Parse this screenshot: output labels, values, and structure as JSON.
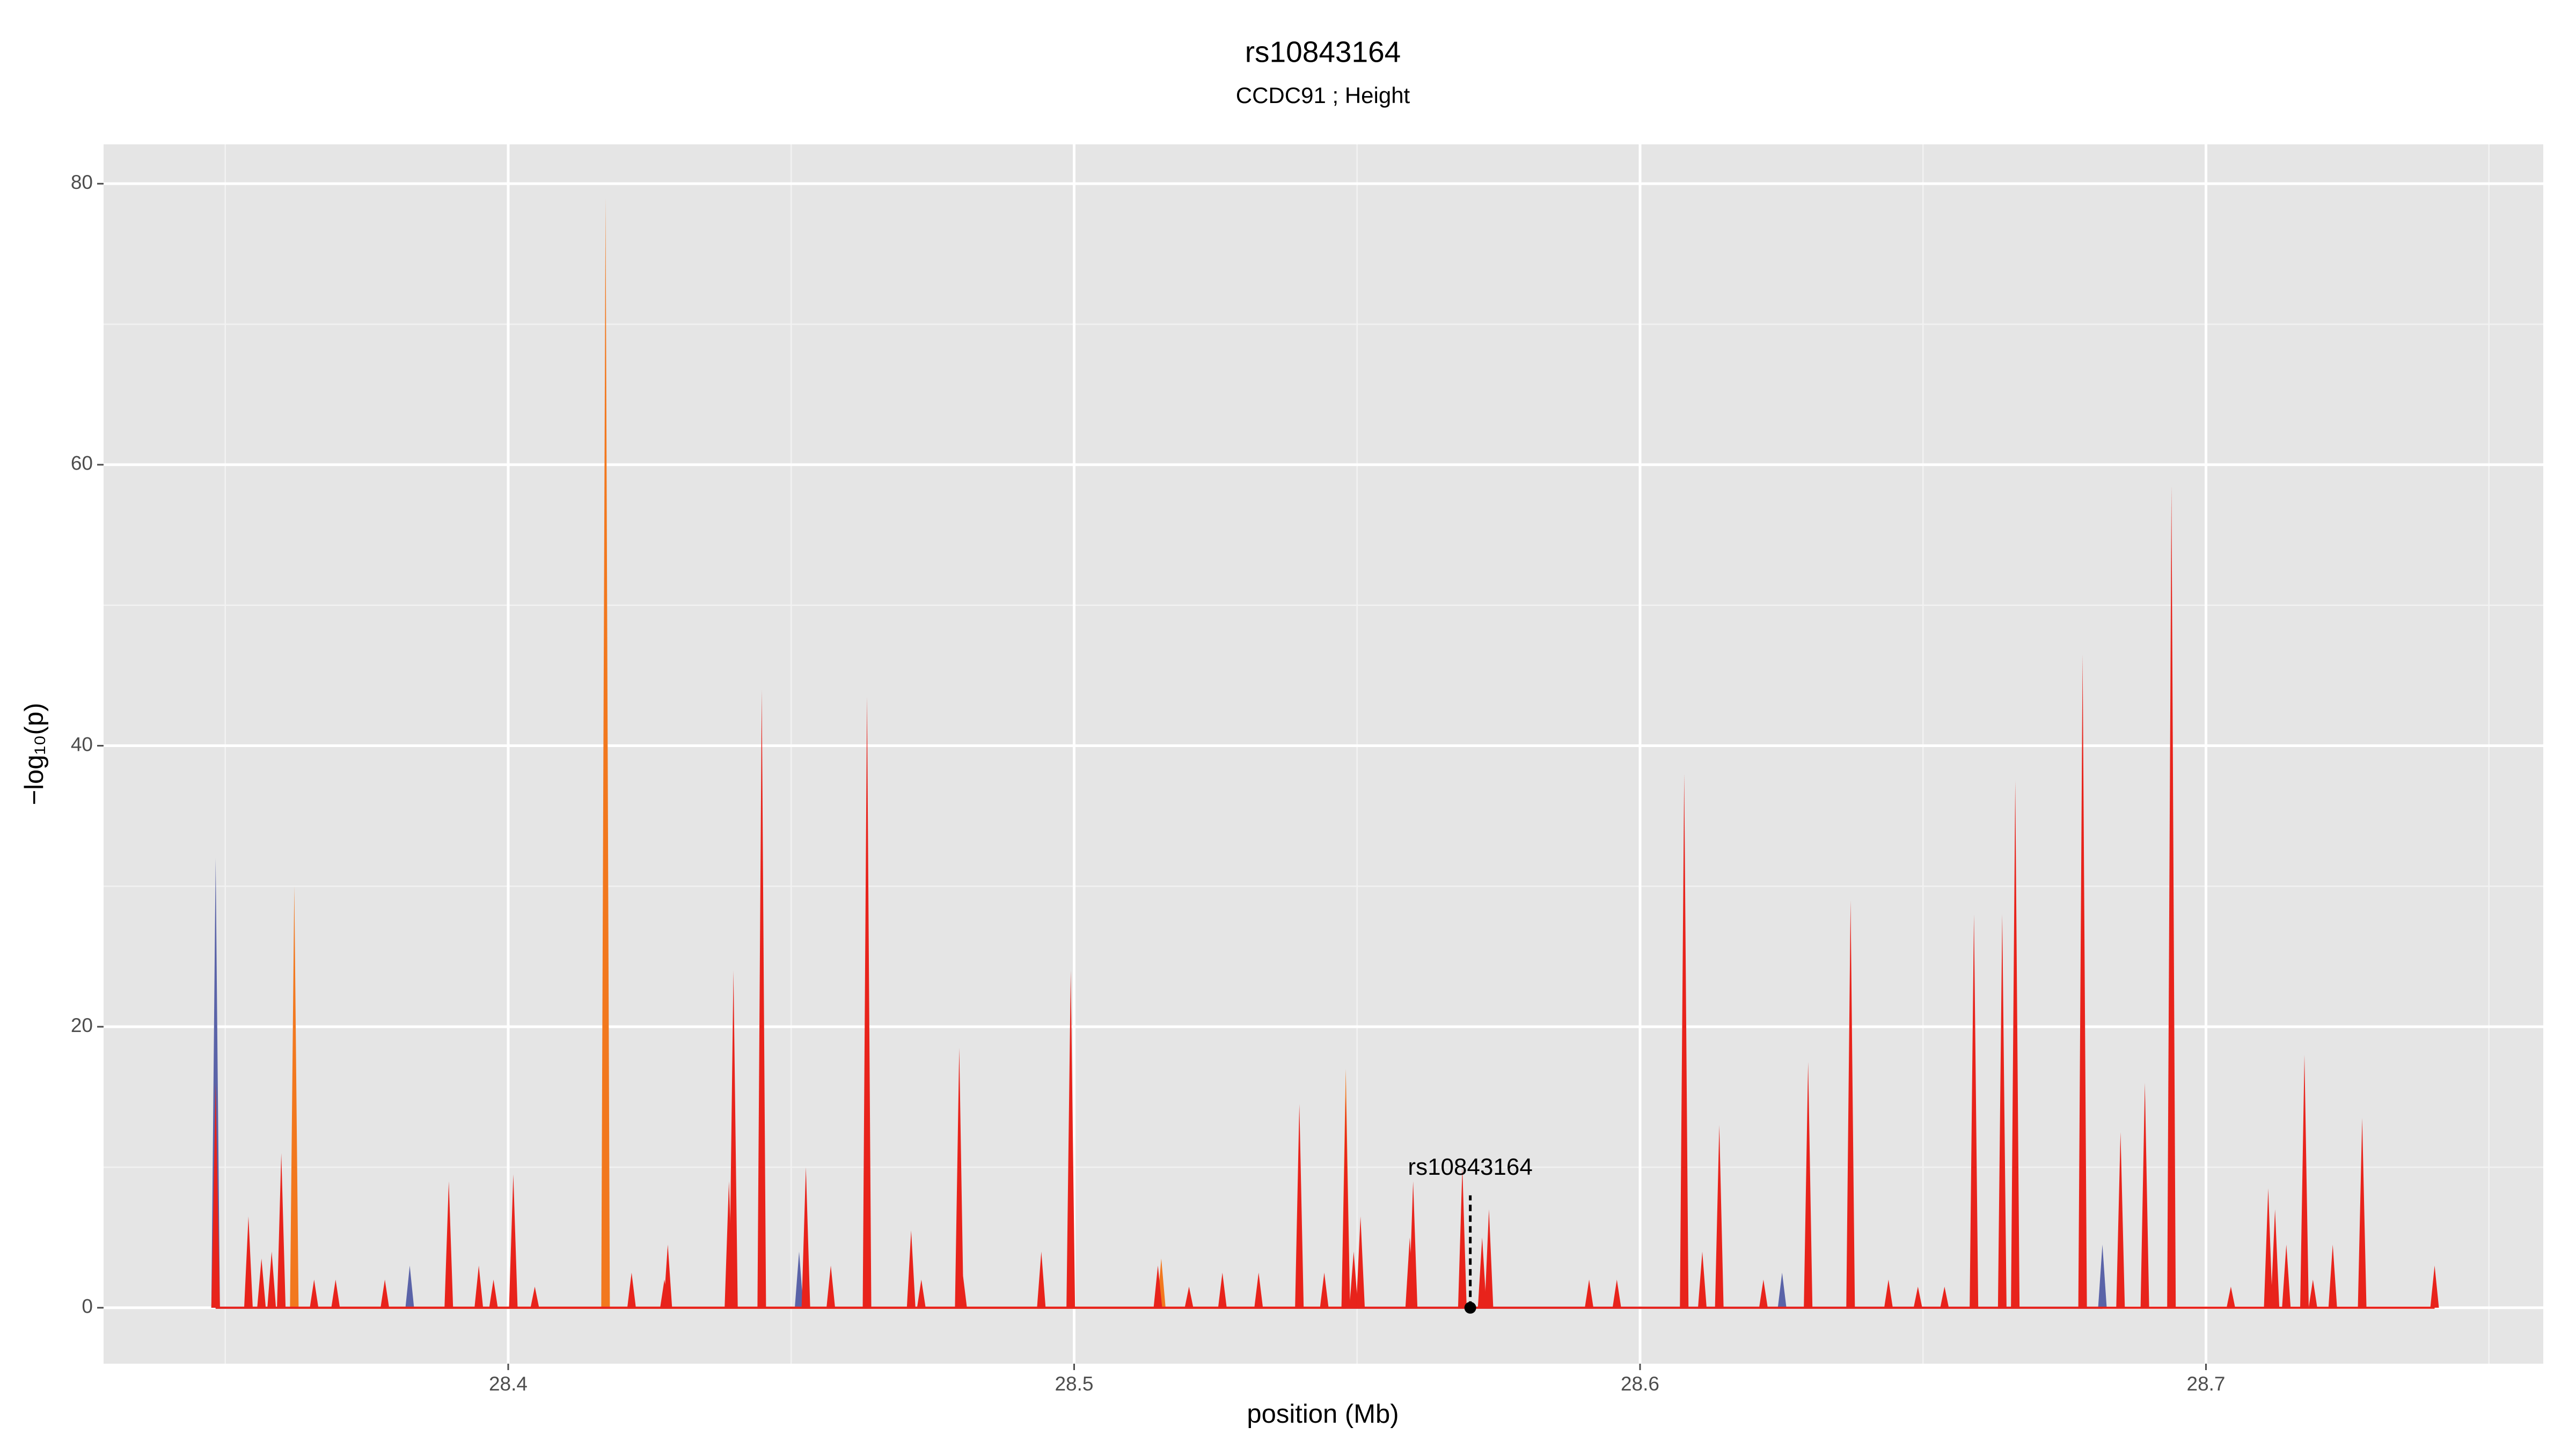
{
  "chart_data": {
    "type": "spike",
    "title": "rs10843164",
    "subtitle": "CCDC91 ; Height",
    "x_label": "position (Mb)",
    "y_label": "−log₁₀(p)",
    "xlim": [
      28.3285,
      28.7596
    ],
    "ylim": [
      -3.98,
      82.8
    ],
    "xticks": [
      28.4,
      28.5,
      28.6,
      28.7
    ],
    "yticks": [
      0,
      20,
      40,
      60,
      80
    ],
    "grid": true,
    "annotation": {
      "text": "rs10843164",
      "x": 28.57,
      "y": 0
    },
    "series": [
      {
        "color": "#5a63a8",
        "x": [
          28.3483,
          28.3826,
          28.4514,
          28.6251,
          28.6817
        ],
        "values": [
          32,
          3,
          4,
          2.5,
          4.5
        ]
      },
      {
        "color": "#f2781e",
        "x": [
          28.3622,
          28.4172,
          28.5154,
          28.548
        ],
        "values": [
          30,
          79,
          3.5,
          17
        ]
      },
      {
        "color": "#e8231b",
        "x": [
          28.3483,
          28.3541,
          28.3564,
          28.3582,
          28.3599,
          28.3657,
          28.3695,
          28.3782,
          28.3895,
          28.3948,
          28.3974,
          28.4009,
          28.4047,
          28.4218,
          28.4276,
          28.4282,
          28.439,
          28.4398,
          28.4448,
          28.4526,
          28.457,
          28.4634,
          28.4712,
          28.473,
          28.4797,
          28.4803,
          28.4942,
          28.4994,
          28.5148,
          28.5203,
          28.5262,
          28.5326,
          28.5398,
          28.5442,
          28.548,
          28.5494,
          28.5506,
          28.5593,
          28.5599,
          28.5686,
          28.5721,
          28.5733,
          28.591,
          28.5959,
          28.6078,
          28.611,
          28.614,
          28.6218,
          28.6297,
          28.6372,
          28.6439,
          28.6491,
          28.6538,
          28.659,
          28.664,
          28.6663,
          28.6782,
          28.6849,
          28.6892,
          28.6939,
          28.7044,
          28.711,
          28.7122,
          28.7142,
          28.7174,
          28.7189,
          28.7224,
          28.7276,
          28.7404
        ],
        "values": [
          16,
          6.5,
          3.5,
          4,
          11,
          2,
          2,
          2,
          9,
          3,
          2,
          9.5,
          1.5,
          2.5,
          2,
          4.5,
          9,
          24,
          44,
          10,
          3,
          43.5,
          5.5,
          2,
          18.5,
          2.5,
          4,
          24,
          3,
          1.5,
          2.5,
          2.5,
          14.5,
          2.5,
          15,
          4,
          6.5,
          5,
          9,
          10,
          5,
          7,
          2,
          2,
          38,
          4,
          13,
          2,
          17.5,
          29,
          2,
          1.5,
          1.5,
          28,
          28,
          37.5,
          46.5,
          12.5,
          16,
          58.5,
          1.5,
          8.5,
          7,
          4.5,
          18,
          2,
          4.5,
          13.5,
          3
        ]
      }
    ]
  }
}
